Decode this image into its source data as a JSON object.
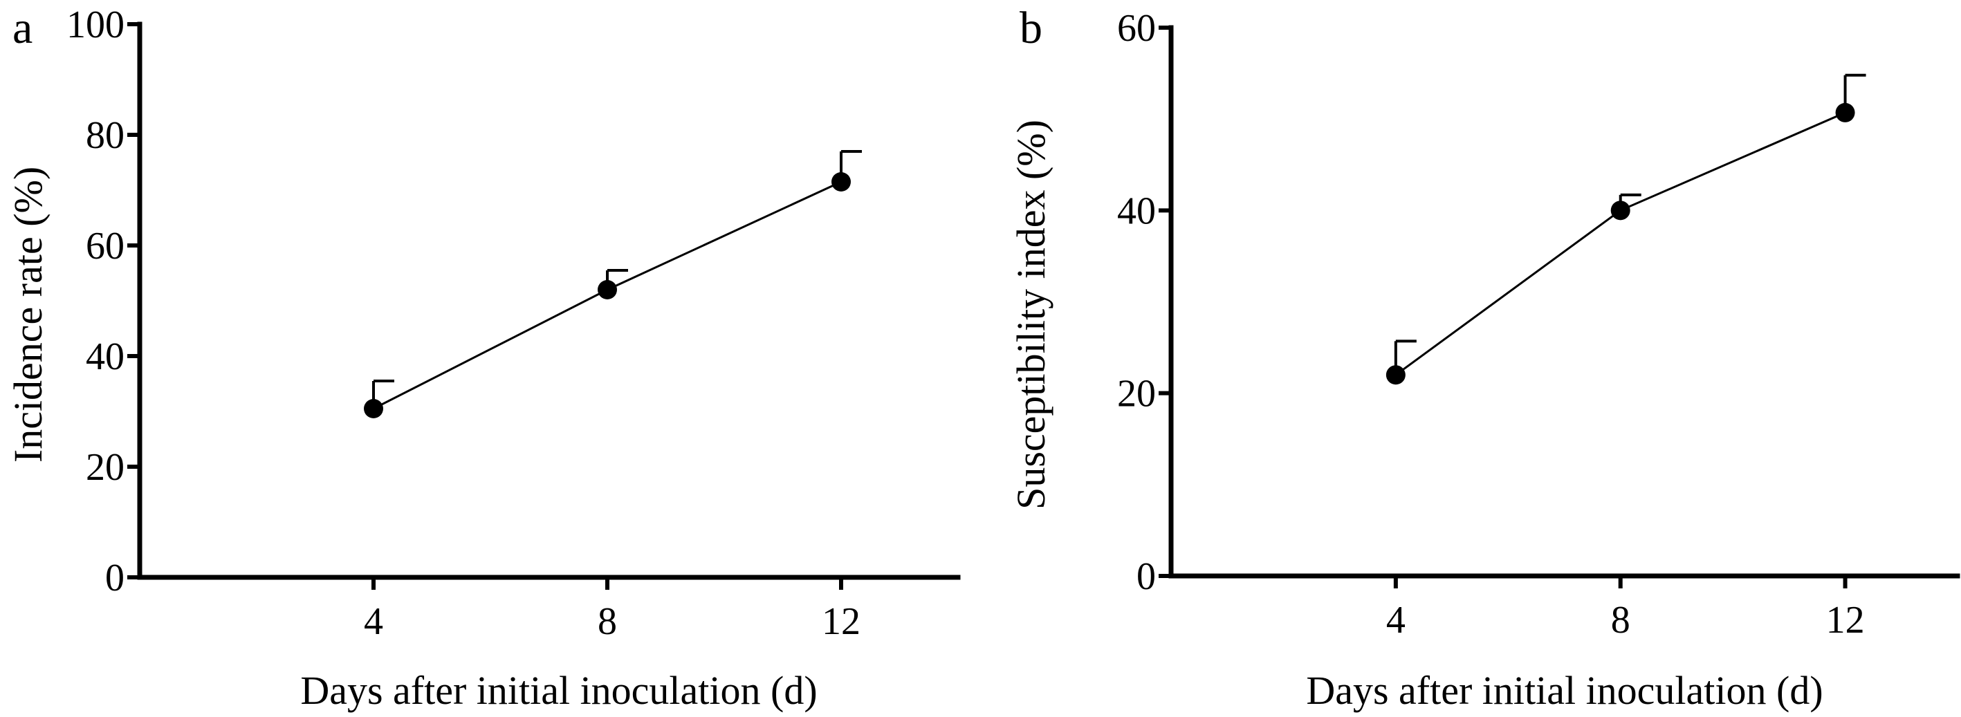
{
  "chart_data": [
    {
      "type": "line",
      "panel": "a",
      "title": "",
      "xlabel": "Days after initial inoculation (d)",
      "ylabel": "Incidence rate (%)",
      "x": [
        4,
        8,
        12
      ],
      "xticks": [
        "4",
        "8",
        "12"
      ],
      "yticks": [
        "0",
        "20",
        "40",
        "60",
        "80",
        "100"
      ],
      "ylim": [
        0,
        100
      ],
      "series": [
        {
          "values": [
            30.5,
            52,
            71.5
          ],
          "error_upper": [
            35.5,
            55.5,
            77
          ]
        }
      ],
      "grid": false,
      "legend": "none"
    },
    {
      "type": "line",
      "panel": "b",
      "title": "",
      "xlabel": "Days after initial inoculation (d)",
      "ylabel": "Susceptibility index (%)",
      "x": [
        4,
        8,
        12
      ],
      "xticks": [
        "4",
        "8",
        "12"
      ],
      "yticks": [
        "0",
        "20",
        "40",
        "60"
      ],
      "ylim": [
        0,
        60
      ],
      "series": [
        {
          "values": [
            22,
            40,
            50.7
          ],
          "error_upper": [
            25.7,
            41.7,
            54.8
          ]
        }
      ],
      "grid": false,
      "legend": "none"
    }
  ]
}
